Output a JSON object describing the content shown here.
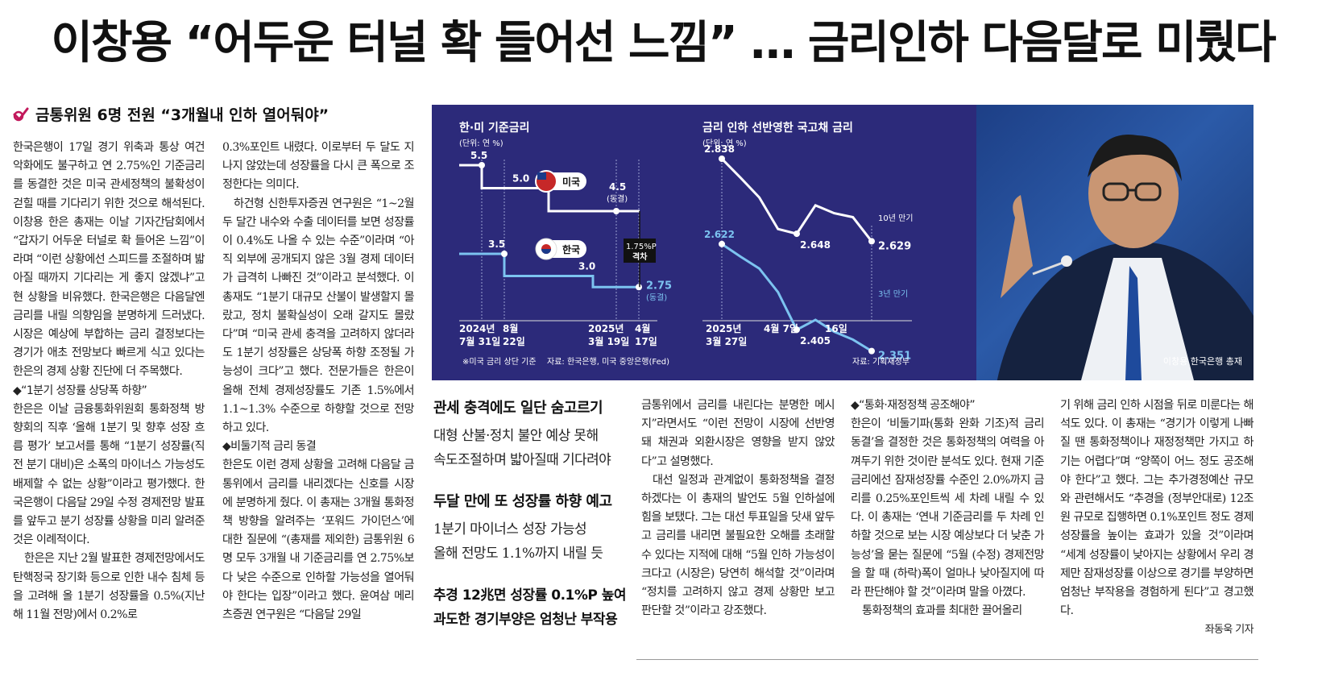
{
  "headline": "이창용 “어두운 터널 확 들어선 느낌” … 금리인하 다음달로 미뤘다",
  "subhead": "금통위원 6명 전원 “3개월내 인하 열어둬야”",
  "chart_data": [
    {
      "type": "line",
      "title": "한·미 기준금리",
      "unit": "(단위: 연 %)",
      "x_ticks": [
        [
          "2024년",
          "7월 31일"
        ],
        [
          "8월",
          "22일"
        ],
        [
          "2025년",
          "3월 19일"
        ],
        [
          "4월",
          "17일"
        ]
      ],
      "series": [
        {
          "name": "미국",
          "values": [
            5.5,
            5.0,
            4.5,
            4.5
          ],
          "labels": [
            "5.5",
            "5.0",
            "4.5",
            "(동결)"
          ]
        },
        {
          "name": "한국",
          "values": [
            3.5,
            3.0,
            2.75,
            2.75
          ],
          "labels": [
            "3.5",
            "3.0",
            "2.75",
            "(동결)"
          ]
        }
      ],
      "gap_label": [
        "1.75%P",
        "격차"
      ],
      "note": "※미국 금리 상단 기준",
      "source": "자료: 한국은행, 미국 중앙은행(Fed)"
    },
    {
      "type": "line",
      "title": "금리 인하 선반영한 국고채 금리",
      "unit": "(단위: 연 %)",
      "x_ticks": [
        [
          "2025년",
          "3월 27일"
        ],
        [
          "4월 7일",
          ""
        ],
        [
          "16일",
          ""
        ]
      ],
      "series": [
        {
          "name": "10년 만기",
          "values": [
            2.838,
            2.79,
            2.74,
            2.66,
            2.648,
            2.72,
            2.7,
            2.69,
            2.629
          ],
          "labels": [
            "2.838",
            "2.648",
            "2.629"
          ]
        },
        {
          "name": "3년 만기",
          "values": [
            2.622,
            2.59,
            2.56,
            2.5,
            2.405,
            2.43,
            2.4,
            2.38,
            2.351
          ],
          "labels": [
            "2.622",
            "2.405",
            "2.351"
          ]
        }
      ],
      "source": "자료: 기획재정부"
    }
  ],
  "labels": {
    "us_flag_label": "미국",
    "kr_flag_label": "한국",
    "us_freeze_value": "4.5",
    "us_freeze_note": "(동결)",
    "kr_freeze_value": "2.75",
    "kr_freeze_note": "(동결)",
    "bond10_label": "10년 만기",
    "bond3_label": "3년 만기",
    "photo_caption": "이창용 한국은행 총재"
  },
  "col1": {
    "p1": "한국은행이 17일 경기 위축과 통상 여건 악화에도 불구하고 연 2.75%인 기준금리를 동결한 것은 미국 관세정책의 불확성이 걷힐 때를 기다리기 위한 것으로 해석된다. 이창용 한은 총재는 이날 기자간담회에서 “갑자기 어두운 터널로 확 들어온 느낌”이라며 “이런 상황에선 스피드를 조절하며 밟아질 때까지 기다리는 게 좋지 않겠냐”고 현 상황을 비유했다. 한국은행은 다음달엔 금리를 내릴 의향임을 분명하게 드러냈다. 시장은 예상에 부합하는 금리 결정보다는 경기가 애초 전망보다 빠르게 식고 있다는 한은의 경제 상황 진단에 더 주목했다.",
    "sec1": "◆“1분기 성장률 상당폭 하향”",
    "p2": "한은은 이날 금융통화위원회 통화정책 방향회의 직후 ‘올해 1분기 및 향후 성장 흐름 평가’ 보고서를 통해 “1분기 성장률(직전 분기 대비)은 소폭의 마이너스 가능성도 배제할 수 없는 상황”이라고 평가했다. 한국은행이 다음달 29일 수정 경제전망 발표를 앞두고 분기 성장률 상황을 미리 알려준 것은 이례적이다.",
    "p3": "한은은 지난 2월 발표한 경제전망에서도 탄핵정국 장기화 등으로 인한 내수 침체 등을 고려해 올 1분기 성장률을 0.5%(지난해 11월 전망)에서 0.2%로"
  },
  "col2": {
    "p1": "0.3%포인트 내렸다. 이로부터 두 달도 지나지 않았는데 성장률을 다시 큰 폭으로 조정한다는 의미다.",
    "p2": "하건형 신한투자증권 연구원은 “1~2월 두 달간 내수와 수출 데이터를 보면 성장률이 0.4%도 나올 수 있는 수준”이라며 “아직 외부에 공개되지 않은 3월 경제 데이터가 급격히 나빠진 것”이라고 분석했다. 이 총재도 “1분기 대규모 산불이 발생할지 몰랐고, 정치 불확실성이 오래 갈지도 몰랐다”며 “미국 관세 충격을 고려하지 않더라도 1분기 성장률은 상당폭 하향 조정될 가능성이 크다”고 했다. 전문가들은 한은이 올해 전체 경제성장률도 기존 1.5%에서 1.1~1.3% 수준으로 하향할 것으로 전망하고 있다.",
    "sec1": "◆비둘기적 금리 동결",
    "p3": "한은도 이런 경제 상황을 고려해 다음달 금통위에서 금리를 내리겠다는 신호를 시장에 분명하게 줬다. 이 총재는 3개월 통화정책 방향을 알려주는 ‘포워드 가이던스’에 대한 질문에 “(총재를 제외한) 금통위원 6명 모두 3개월 내 기준금리를 연 2.75%보다 낮은 수준으로 인하할 가능성을 열어둬야 한다는 입장”이라고 했다. 윤여삼 메리츠증권 연구원은 “다음달 29일"
  },
  "sidebar": {
    "h1": "관세 충격에도 일단 숨고르기",
    "l1": "대형 산불·정치 불안 예상 못해",
    "l2": "속도조절하며 밟아질때 기다려야",
    "h2": "두달 만에 또 성장률 하향 예고",
    "l3": "1분기 마이너스 성장 가능성",
    "l4": "올해 전망도 1.1%까지 내릴 듯",
    "h3a": "추경 12兆면 성장률 0.1%P 높여",
    "h3b": "과도한 경기부양은 엄청난 부작용"
  },
  "col3": {
    "p1": "금통위에서 금리를 내린다는 분명한 메시지”라면서도 “이런 전망이 시장에 선반영돼 채권과 외환시장은 영향을 받지 않았다”고 설명했다.",
    "p2": "대선 일정과 관계없이 통화정책을 결정하겠다는 이 총재의 발언도 5월 인하설에 힘을 보탰다. 그는 대선 투표일을 닷새 앞두고 금리를 내리면 불필요한 오해를 초래할 수 있다는 지적에 대해 “5월 인하 가능성이 크다고 (시장은) 당연히 해석할 것”이라며 “정치를 고려하지 않고 경제 상황만 보고 판단할 것”이라고 강조했다."
  },
  "col4": {
    "sec1": "◆“통화·재정정책 공조해야”",
    "p1": "한은이 ‘비둘기파(통화 완화 기조)적 금리 동결’을 결정한 것은 통화정책의 여력을 아껴두기 위한 것이란 분석도 있다. 현재 기준금리에선 잠재성장률 수준인 2.0%까지 금리를 0.25%포인트씩 세 차례 내릴 수 있다. 이 총재는 ‘연내 기준금리를 두 차례 인하할 것으로 보는 시장 예상보다 더 낮춘 가능성’을 묻는 질문에 “5월 (수정) 경제전망을 할 때 (하락)폭이 얼마나 낮아질지에 따라 판단해야 할 것”이라며 말을 아꼈다.",
    "p2": "통화정책의 효과를 최대한 끌어올리"
  },
  "col5": {
    "p1": "기 위해 금리 인하 시점을 뒤로 미룬다는 해석도 있다. 이 총재는 “경기가 이렇게 나빠질 땐 통화정책이나 재정정책만 가지고 하기는 어렵다”며 “양쪽이 어느 정도 공조해야 한다”고 했다. 그는 추가경정예산 규모와 관련해서도 “추경을 (정부안대로) 12조원 규모로 집행하면 0.1%포인트 정도 경제성장률을 높이는 효과가 있을 것”이라며 “세계 성장률이 낮아지는 상황에서 우리 경제만 잠재성장률 이상으로 경기를 부양하면 엄청난 부작용을 경험하게 된다”고 경고했다.",
    "byline": "좌동욱 기자"
  },
  "colors": {
    "chart_bg": "#2c2a7a",
    "us_line": "#ffffff",
    "kr_line": "#7cc3f0",
    "check": "#c2185b"
  }
}
